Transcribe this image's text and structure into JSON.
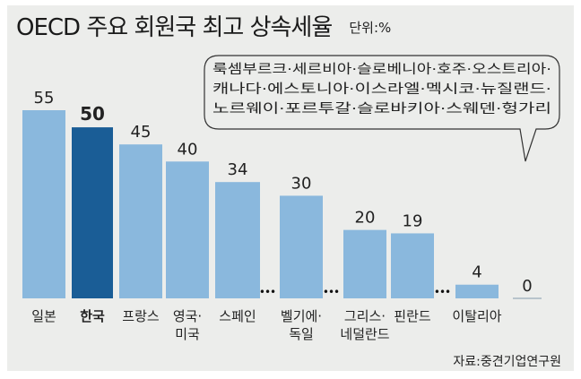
{
  "header": {
    "title": "OECD 주요 회원국 최고 상속세율",
    "unit": "단위:%"
  },
  "chart_data": {
    "type": "bar",
    "title": "OECD 주요 회원국 최고 상속세율",
    "xlabel": "",
    "ylabel": "",
    "ylim": [
      0,
      55
    ],
    "grid": false,
    "categories": [
      [
        "일본"
      ],
      [
        "한국"
      ],
      [
        "프랑스"
      ],
      [
        "영국·",
        "미국"
      ],
      [
        "스페인"
      ],
      [
        "벨기에·",
        "독일"
      ],
      [
        "그리스·",
        "네덜란드"
      ],
      [
        "핀란드"
      ],
      [
        "이탈리아"
      ],
      [
        ""
      ]
    ],
    "values": [
      55,
      50,
      45,
      40,
      34,
      30,
      20,
      19,
      4,
      0
    ],
    "value_labels": [
      "55",
      "50",
      "45",
      "40",
      "34",
      "30",
      "20",
      "19",
      "4",
      "0"
    ],
    "highlight_index": 1,
    "gap_marker": "•••",
    "callout_lines": [
      "룩셈부르크·세르비아·슬로베니아·호주·오스트리아·",
      "캐나다·에스토니아·이스라엘·멕시코·뉴질랜드·",
      "노르웨이·포르투갈·슬로바키아·스웨덴·헝가리"
    ],
    "colors": {
      "bar": "#8ab8dd",
      "highlight": "#1a5d96",
      "text": "#222222",
      "zero_line": "#b8c4cc"
    }
  },
  "source": "자료:중견기업연구원"
}
